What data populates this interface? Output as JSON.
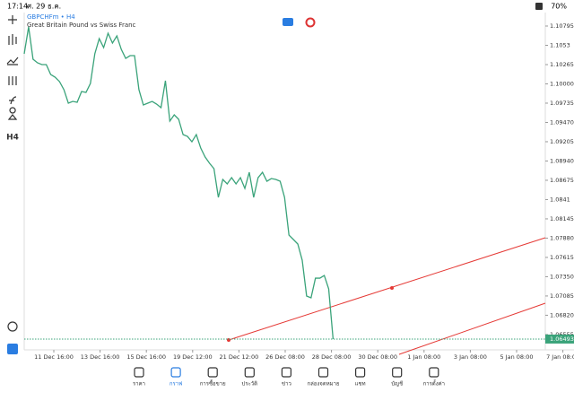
{
  "status": {
    "time": "17:14",
    "date": "ศ. 29 ธ.ค.",
    "battery": "70%"
  },
  "toolbar": {
    "timeframe": "H4"
  },
  "chart_data": {
    "type": "line",
    "symbol": "GBPCHFm • H4",
    "description": "Great Britain Pound vs Swiss Franc",
    "series": [
      {
        "name": "GBPCHFm",
        "color": "#3aa37a",
        "values": [
          1.10413,
          1.10783,
          1.10339,
          1.1029,
          1.10265,
          1.10265,
          1.10129,
          1.10092,
          1.10031,
          1.0992,
          1.09735,
          1.09759,
          1.09747,
          1.09895,
          1.09883,
          1.10006,
          1.10413,
          1.10622,
          1.10499,
          1.10696,
          1.10561,
          1.10659,
          1.10474,
          1.10351,
          1.10388,
          1.10388,
          1.0992,
          1.0971,
          1.09735,
          1.09759,
          1.09722,
          1.09673,
          1.10043,
          1.09488,
          1.09574,
          1.09513,
          1.09303,
          1.09278,
          1.09204,
          1.09303,
          1.09118,
          1.08995,
          1.08909,
          1.08835,
          1.0844,
          1.08687,
          1.08625,
          1.08711,
          1.08625,
          1.08711,
          1.08563,
          1.08785,
          1.0844,
          1.08711,
          1.08785,
          1.08662,
          1.08699,
          1.08687,
          1.08662,
          1.0844,
          1.07922,
          1.07861,
          1.07799,
          1.07577,
          1.07084,
          1.07059,
          1.0733,
          1.0733,
          1.07367,
          1.07182,
          1.06493
        ]
      }
    ],
    "x_labels": [
      "11 Dec 16:00",
      "13 Dec 16:00",
      "15 Dec 16:00",
      "19 Dec 12:00",
      "21 Dec 12:00",
      "26 Dec 08:00",
      "28 Dec 08:00",
      "30 Dec 08:00",
      "1 Jan 08:00",
      "3 Jan 08:00",
      "5 Jan 08:00",
      "7 Jan 08:00"
    ],
    "ylim": [
      1.06406,
      1.1098
    ],
    "yticks": [
      1.10795,
      1.1053,
      1.10265,
      {
        "value": 1.1,
        "label": "1.10000"
      },
      1.09735,
      {
        "value": 1.0947,
        "label": "1.09470"
      },
      1.09205,
      {
        "value": 1.0894,
        "label": "1.08940"
      },
      1.08675,
      1.0841,
      1.08145,
      {
        "value": 1.0788,
        "label": "1.07880"
      },
      1.07615,
      {
        "value": 1.0735,
        "label": "1.07350"
      },
      1.07085,
      {
        "value": 1.0682,
        "label": "1.06820"
      },
      1.06555
    ],
    "current_price": 1.06493,
    "grid": false
  },
  "nav": [
    "ราคา",
    "กราฟ",
    "การซื้อขาย",
    "ประวัติ",
    "ข่าว",
    "กล่องจดหมาย",
    "แชท",
    "บัญชี",
    "การตั้งค่า"
  ]
}
